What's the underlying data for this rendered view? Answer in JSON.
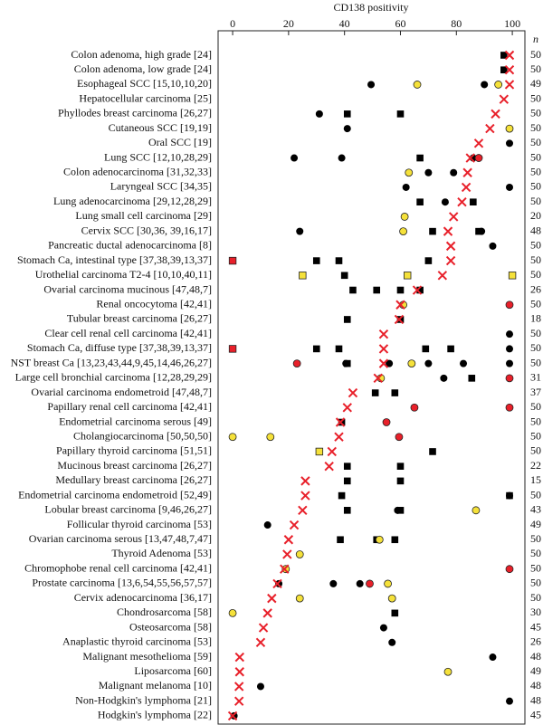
{
  "chart_data": {
    "type": "dot",
    "title": "CD138 positivity",
    "n_label": "n",
    "xlim": [
      -5.2,
      104.5
    ],
    "xticks": [
      0,
      20,
      40,
      60,
      80,
      100
    ],
    "categories": [
      "Colon adenoma, high grade [24]",
      "Colon adenoma, low grade [24]",
      "Esophageal SCC [15,10,10,20]",
      "Hepatocellular carcinoma [25]",
      "Phyllodes breast carcinoma [26,27]",
      "Cutaneous SCC [19,19]",
      "Oral SCC [19]",
      "Lung SCC [12,10,28,29]",
      "Colon adenocarcinoma [31,32,33]",
      "Laryngeal SCC [34,35]",
      "Lung adenocarcinoma [29,12,28,29]",
      "Lung small cell carcinoma [29]",
      "Cervix SCC [30,36, 39,16,17]",
      "Pancreatic ductal adenocarcinoma [8]",
      "Stomach Ca, intestinal type [37,38,39,13,37]",
      "Urothelial carcinoma T2-4 [10,10,40,11]",
      "Ovarial carcinoma mucinous [47,48,7]",
      "Renal oncocytoma [42,41]",
      "Tubular breast carcinoma [26,27]",
      "Clear cell renal cell carcinoma [42,41]",
      "Stomach Ca, diffuse type [37,38,39,13,37]",
      "NST breast Ca [13,23,43,44,9,45,14,46,26,27]",
      "Large cell bronchial carcinoma [12,28,29,29]",
      "Ovarial carcinoma endometroid [47,48,7]",
      "Papillary renal cell carcinoma [42,41]",
      "Endometrial carcinoma serous [49]",
      "Cholangiocarcinoma [50,50,50]",
      "Papillary thyroid carcinoma [51,51]",
      "Mucinous breast carcinoma [26,27]",
      "Medullary breast carcinoma [26,27]",
      "Endometrial carcinoma endometroid [52,49]",
      "Lobular breast carcinoma [9,46,26,27]",
      "Follicular thyroid carcinoma [53]",
      "Ovarian carcinoma serous [13,47,48,7,47]",
      "Thyroid Adenoma [53]",
      "Chromophobe renal cell carcinoma [42,41]",
      "Prostate carcinoma [13,6,54,55,56,57,57]",
      "Cervix adenocarcinoma [36,17]",
      "Chondrosarcoma [58]",
      "Osteosarcoma [58]",
      "Anaplastic thyroid carcinoma [53]",
      "Malignant mesothelioma [59]",
      "Liposarcoma [60]",
      "Malignant melanoma [10]",
      "Non-Hodgkin's lymphoma [21]",
      "Hodgkin's lymphoma [22]"
    ],
    "n": [
      50,
      50,
      49,
      50,
      50,
      50,
      50,
      50,
      50,
      50,
      50,
      20,
      48,
      50,
      50,
      50,
      26,
      50,
      18,
      50,
      50,
      50,
      31,
      37,
      50,
      50,
      50,
      50,
      22,
      15,
      50,
      43,
      49,
      50,
      50,
      50,
      50,
      50,
      30,
      45,
      26,
      48,
      49,
      48,
      48,
      45
    ],
    "series": [
      {
        "marker": "cross",
        "color": "#e8202a",
        "values": [
          99,
          99,
          99,
          97,
          94,
          92,
          88,
          85,
          84,
          83.5,
          82,
          79,
          77,
          78,
          78,
          75,
          66,
          60,
          59.5,
          54,
          54,
          54,
          52,
          43,
          41,
          38.5,
          38,
          35.5,
          34.5,
          26,
          26,
          25,
          22,
          20,
          19.5,
          18.5,
          16,
          14,
          12.5,
          11,
          10,
          2.5,
          2.5,
          2.3,
          2.3,
          0
        ]
      },
      {
        "marker": "circle",
        "color": "#000000",
        "values": [
          [],
          [],
          [
            49.5,
            90
          ],
          [],
          [
            31
          ],
          [
            41
          ],
          [
            99
          ],
          [
            22,
            39,
            86
          ],
          [
            70,
            79
          ],
          [
            62,
            99
          ],
          [
            76
          ],
          [],
          [
            24,
            89
          ],
          [
            93
          ],
          [],
          [],
          [],
          [],
          [],
          [
            99
          ],
          [
            99
          ],
          [
            40.5,
            56,
            70,
            82.5,
            99
          ],
          [
            75.5
          ],
          [],
          [],
          [],
          [],
          [],
          [],
          [],
          [
            99
          ],
          [
            59
          ],
          [
            12.5
          ],
          [],
          [],
          [],
          [
            16.5,
            36,
            45.5
          ],
          [],
          [],
          [
            54
          ],
          [
            57
          ],
          [
            93
          ],
          [],
          [
            10
          ],
          [
            99
          ],
          [
            0.5
          ]
        ]
      },
      {
        "marker": "square",
        "color": "#000000",
        "values": [
          [
            97
          ],
          [
            97
          ],
          [],
          [],
          [
            41,
            60
          ],
          [],
          [],
          [
            67
          ],
          [],
          [],
          [
            67,
            86
          ],
          [],
          [
            71.5,
            88
          ],
          [],
          [
            30,
            38,
            70
          ],
          [
            40
          ],
          [
            43,
            51.5,
            60,
            67
          ],
          [],
          [
            41,
            60
          ],
          [],
          [
            30,
            38,
            69,
            78
          ],
          [
            41
          ],
          [
            85.5
          ],
          [
            51,
            58
          ],
          [],
          [
            39
          ],
          [],
          [
            71.5
          ],
          [
            41,
            60
          ],
          [
            41,
            60
          ],
          [
            39,
            99
          ],
          [
            41,
            60
          ],
          [],
          [
            38.5,
            51.5,
            58
          ],
          [],
          [],
          [],
          [],
          [
            58
          ],
          [],
          [],
          [],
          [],
          [],
          [],
          []
        ]
      },
      {
        "marker": "circle",
        "color": "#f5e13a",
        "values": [
          [],
          [],
          [
            66,
            95
          ],
          [],
          [],
          [
            99
          ],
          [],
          [],
          [
            63
          ],
          [],
          [],
          [
            61.5
          ],
          [
            61
          ],
          [],
          [],
          [],
          [],
          [
            61
          ],
          [],
          [],
          [],
          [
            64
          ],
          [
            53
          ],
          [],
          [],
          [],
          [
            0,
            13.5
          ],
          [],
          [],
          [],
          [],
          [
            87
          ],
          [],
          [
            52.5
          ],
          [
            24
          ],
          [
            19
          ],
          [
            55.5
          ],
          [
            24,
            57
          ],
          [
            0
          ],
          [],
          [],
          [],
          [
            77
          ],
          [],
          [],
          []
        ]
      },
      {
        "marker": "square",
        "color": "#f5e13a",
        "values": [
          [],
          [],
          [],
          [],
          [],
          [],
          [],
          [],
          [],
          [],
          [],
          [],
          [],
          [],
          [],
          [
            25,
            62.5,
            100
          ],
          [],
          [],
          [],
          [],
          [],
          [],
          [],
          [],
          [],
          [],
          [],
          [
            31
          ],
          [],
          [],
          [],
          [],
          [],
          [],
          [],
          [],
          [],
          [],
          [],
          [],
          [],
          [],
          [],
          [],
          [],
          []
        ]
      },
      {
        "marker": "circle",
        "color": "#e8202a",
        "values": [
          [],
          [],
          [],
          [],
          [],
          [],
          [],
          [
            88
          ],
          [],
          [],
          [],
          [],
          [],
          [],
          [],
          [],
          [],
          [
            99
          ],
          [],
          [],
          [],
          [
            23
          ],
          [
            99
          ],
          [],
          [
            65,
            99
          ],
          [
            55
          ],
          [
            59.5
          ],
          [],
          [],
          [],
          [],
          [],
          [],
          [],
          [],
          [
            99
          ],
          [
            49
          ],
          [],
          [],
          [],
          [],
          [],
          [],
          [],
          [],
          []
        ]
      },
      {
        "marker": "square",
        "color": "#e8202a",
        "values": [
          [],
          [],
          [],
          [],
          [],
          [],
          [],
          [],
          [],
          [],
          [],
          [],
          [],
          [],
          [
            0
          ],
          [],
          [],
          [],
          [],
          [],
          [
            0
          ],
          [],
          [],
          [],
          [],
          [],
          [],
          [],
          [],
          [],
          [],
          [],
          [],
          [],
          [],
          [],
          [],
          [],
          [],
          [],
          [],
          [],
          [],
          [],
          [],
          []
        ]
      }
    ]
  }
}
